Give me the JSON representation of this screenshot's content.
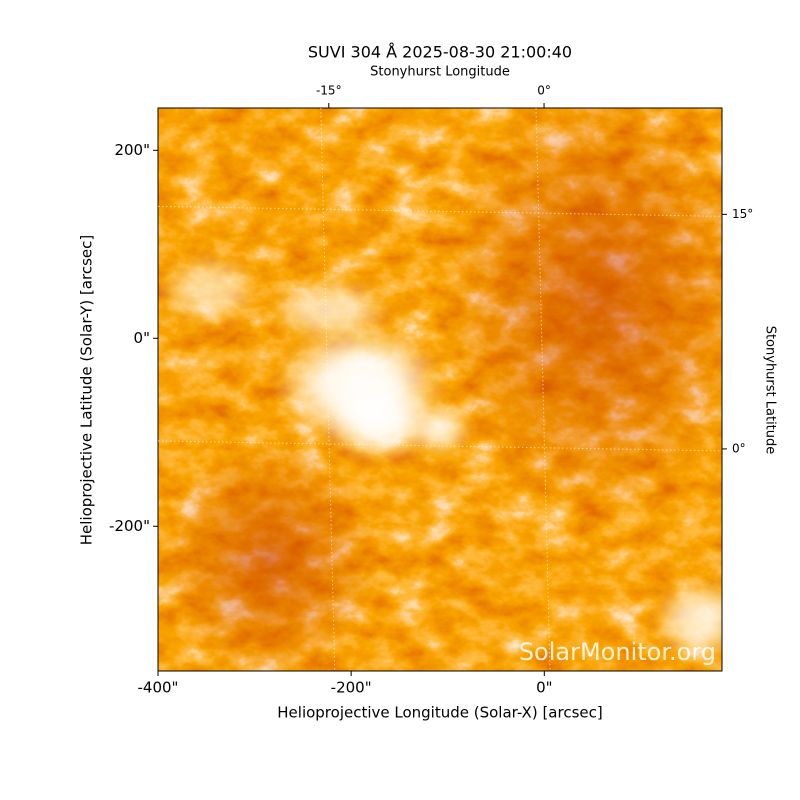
{
  "chart_data": {
    "type": "image",
    "title": "SUVI 304 Å 2025-08-30 21:00:40",
    "xlabel": "Helioprojective Longitude (Solar-X) [arcsec]",
    "ylabel": "Helioprojective Latitude (Solar-Y) [arcsec]",
    "x2label": "Stonyhurst Longitude",
    "y2label": "Stonyhurst Latitude",
    "xlim": [
      -400,
      184
    ],
    "ylim": [
      -354,
      245
    ],
    "xticks": [
      {
        "value": -400,
        "label": "-400\""
      },
      {
        "value": -200,
        "label": "-200\""
      },
      {
        "value": 0,
        "label": "0\""
      }
    ],
    "yticks": [
      {
        "value": -200,
        "label": "-200\""
      },
      {
        "value": 0,
        "label": "0\""
      },
      {
        "value": 200,
        "label": "200\""
      }
    ],
    "x2lim": [
      -26.9,
      12.4
    ],
    "x2ticks": [
      {
        "value": -15,
        "label": "-15°"
      },
      {
        "value": 0,
        "label": "0°"
      }
    ],
    "y2lim": [
      -14.2,
      21.8
    ],
    "y2ticks": [
      {
        "value": 0,
        "label": "0°"
      },
      {
        "value": 15,
        "label": "15°"
      }
    ],
    "grid": true,
    "watermark": "SolarMonitor.org"
  }
}
